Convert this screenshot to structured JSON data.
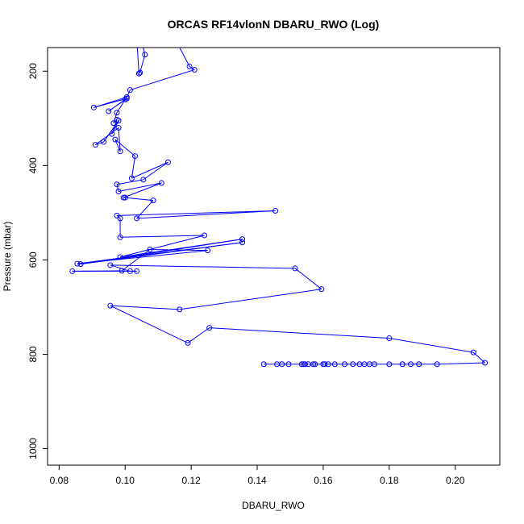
{
  "chart_data": {
    "type": "line",
    "title": "ORCAS RF14vlonN DBARU_RWO (Log)",
    "xlabel": "DBARU_RWO",
    "ylabel": "Pressure (mbar)",
    "xlim": [
      0.0765,
      0.2135
    ],
    "ylim": [
      1035,
      150
    ],
    "y_reversed": true,
    "x_ticks": [
      0.08,
      0.1,
      0.12,
      0.14,
      0.16,
      0.18,
      0.2
    ],
    "x_tick_labels": [
      "0.08",
      "0.10",
      "0.12",
      "0.14",
      "0.16",
      "0.18",
      "0.20"
    ],
    "y_ticks": [
      200,
      400,
      600,
      800,
      1000
    ],
    "y_tick_labels": [
      "200",
      "400",
      "600",
      "800",
      "1000"
    ],
    "grid": false,
    "legend": "none",
    "series": [
      {
        "color": "#0000ff",
        "marker": "open-circle",
        "points": [
          [
            0.1035,
            130
          ],
          [
            0.1042,
            205
          ],
          [
            0.1045,
            203
          ],
          [
            0.106,
            165
          ],
          [
            0.104,
            110
          ],
          [
            0.115,
            130
          ],
          [
            0.1195,
            190
          ],
          [
            0.121,
            197
          ],
          [
            0.1015,
            240
          ],
          [
            0.1005,
            255
          ],
          [
            0.0905,
            277
          ],
          [
            0.1005,
            258
          ],
          [
            0.095,
            285
          ],
          [
            0.1,
            260
          ],
          [
            0.0975,
            288
          ],
          [
            0.0965,
            310
          ],
          [
            0.0975,
            303
          ],
          [
            0.096,
            333
          ],
          [
            0.098,
            305
          ],
          [
            0.0935,
            350
          ],
          [
            0.091,
            356
          ],
          [
            0.098,
            320
          ],
          [
            0.0985,
            370
          ],
          [
            0.097,
            345
          ],
          [
            0.103,
            380
          ],
          [
            0.102,
            427
          ],
          [
            0.113,
            393
          ],
          [
            0.1055,
            430
          ],
          [
            0.0975,
            440
          ],
          [
            0.098,
            455
          ],
          [
            0.111,
            437
          ],
          [
            0.0995,
            468
          ],
          [
            0.1,
            468
          ],
          [
            0.1085,
            474
          ],
          [
            0.1035,
            512
          ],
          [
            0.1455,
            496
          ],
          [
            0.0975,
            506
          ],
          [
            0.0985,
            512
          ],
          [
            0.0985,
            552
          ],
          [
            0.124,
            548
          ],
          [
            0.0985,
            594
          ],
          [
            0.1355,
            556
          ],
          [
            0.0865,
            609
          ],
          [
            0.1355,
            563
          ],
          [
            0.0855,
            608
          ],
          [
            0.125,
            580
          ],
          [
            0.1075,
            578
          ],
          [
            0.099,
            623
          ],
          [
            0.084,
            624
          ],
          [
            0.1035,
            624
          ],
          [
            0.1015,
            624
          ],
          [
            0.0955,
            611
          ],
          [
            0.1515,
            618
          ],
          [
            0.1595,
            662
          ],
          [
            0.1165,
            705
          ],
          [
            0.0955,
            697
          ],
          [
            0.119,
            776
          ],
          [
            0.1255,
            744
          ],
          [
            0.18,
            766
          ],
          [
            0.2055,
            796
          ],
          [
            0.209,
            818
          ],
          [
            0.1945,
            821
          ],
          [
            0.189,
            821
          ],
          [
            0.1865,
            821
          ],
          [
            0.184,
            821
          ],
          [
            0.18,
            821
          ],
          [
            0.1755,
            821
          ],
          [
            0.174,
            821
          ],
          [
            0.1725,
            821
          ],
          [
            0.171,
            821
          ],
          [
            0.169,
            821
          ],
          [
            0.1665,
            821
          ],
          [
            0.1635,
            821
          ],
          [
            0.1615,
            821
          ],
          [
            0.1605,
            821
          ],
          [
            0.16,
            821
          ],
          [
            0.1575,
            821
          ],
          [
            0.157,
            821
          ],
          [
            0.1555,
            821
          ],
          [
            0.1545,
            821
          ],
          [
            0.154,
            821
          ],
          [
            0.1535,
            821
          ],
          [
            0.1495,
            821
          ],
          [
            0.1475,
            821
          ],
          [
            0.146,
            821
          ],
          [
            0.142,
            821
          ]
        ]
      }
    ]
  }
}
